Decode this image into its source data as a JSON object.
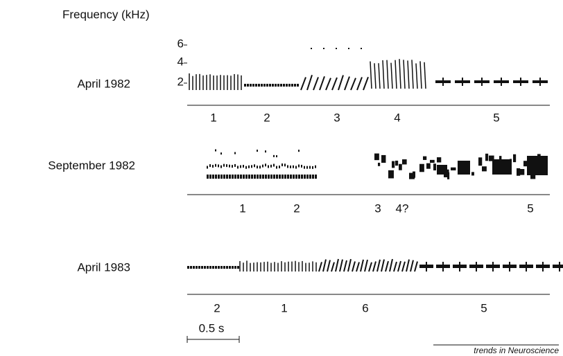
{
  "header": {
    "axis_title": "Frequency (kHz)",
    "ticks": [
      "6",
      "4",
      "2"
    ]
  },
  "rows": [
    {
      "label": "April 1982",
      "segments": [
        "1",
        "2",
        "3",
        "4",
        "5"
      ]
    },
    {
      "label": "September 1982",
      "segments": [
        "1",
        "2",
        "3",
        "4?",
        "5"
      ]
    },
    {
      "label": "April 1983",
      "segments": [
        "2",
        "1",
        "6",
        "5"
      ]
    }
  ],
  "scale_bar": "0.5 s",
  "credit": "trends in Neuroscience"
}
